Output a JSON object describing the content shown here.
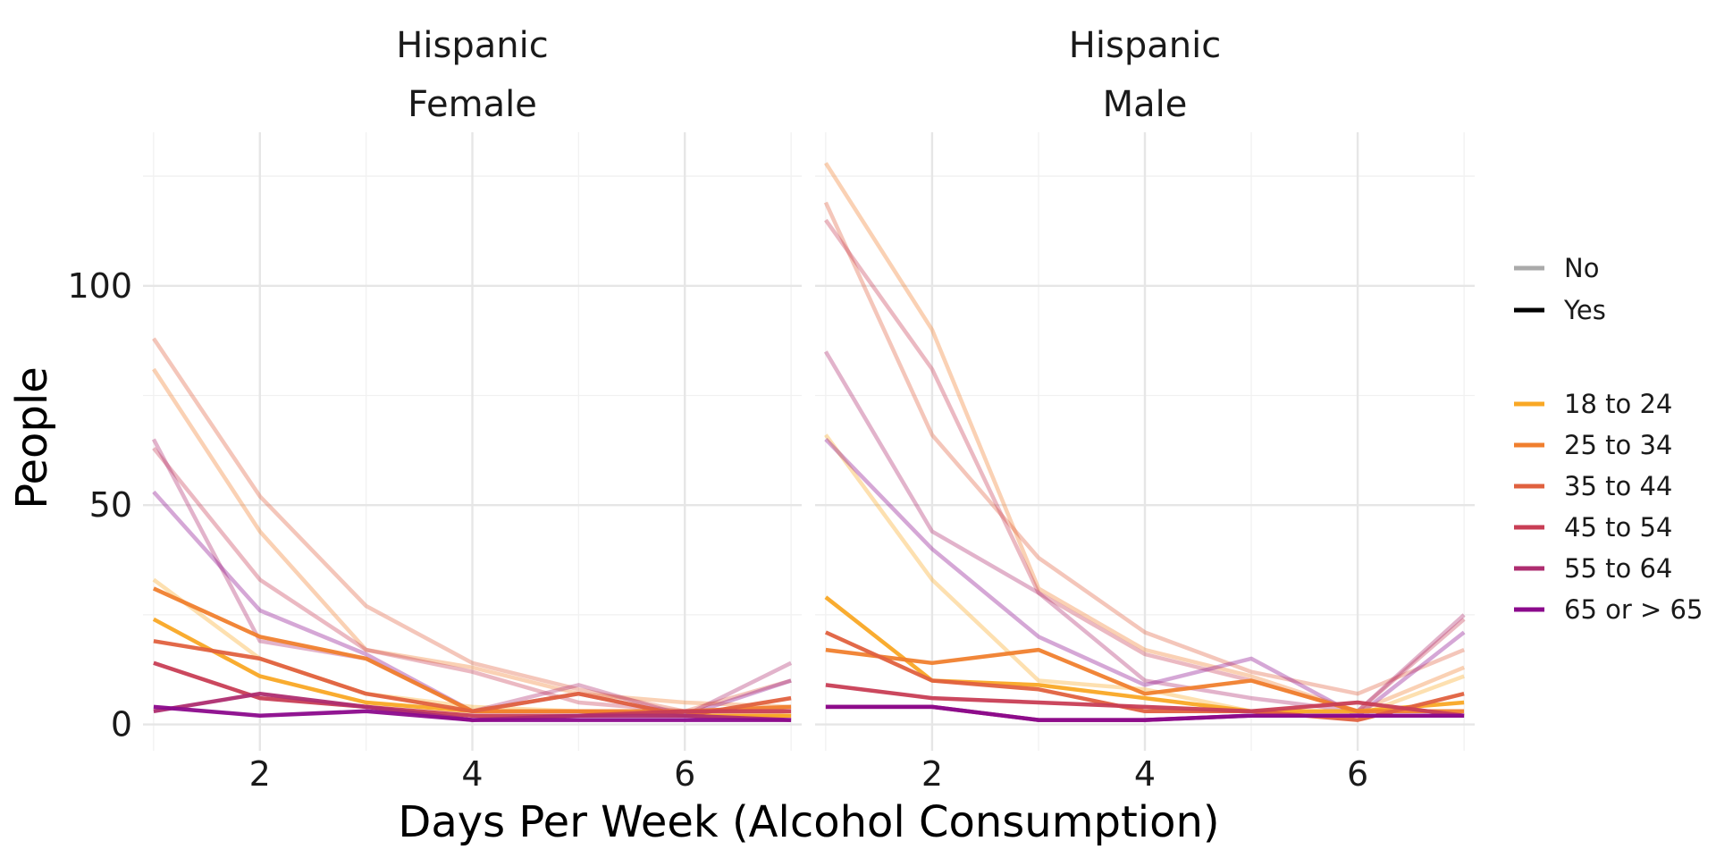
{
  "chart_data": {
    "type": "line",
    "xlabel": "Days Per Week (Alcohol Consumption)",
    "ylabel": "People",
    "x": [
      1,
      2,
      3,
      4,
      5,
      6,
      7
    ],
    "xlim": [
      0.9,
      7.1
    ],
    "ylim": [
      -6,
      135
    ],
    "xticks": [
      2,
      4,
      6
    ],
    "yticks": [
      0,
      50,
      100
    ],
    "grid": true,
    "legend_position": "right",
    "linetype_legend": {
      "entries": [
        {
          "label": "No",
          "color": "#aaaaaa"
        },
        {
          "label": "Yes",
          "color": "#000000"
        }
      ]
    },
    "color_legend": {
      "entries": [
        {
          "label": "18 to 24",
          "color": "#F9A825"
        },
        {
          "label": "25 to 34",
          "color": "#F07F2E"
        },
        {
          "label": "35 to 44",
          "color": "#E0613F"
        },
        {
          "label": "45 to 54",
          "color": "#C83E55"
        },
        {
          "label": "55 to 64",
          "color": "#AE2D70"
        },
        {
          "label": "65 or > 65",
          "color": "#8B0A8C"
        }
      ]
    },
    "facets": [
      {
        "strip": [
          "Hispanic",
          "Female"
        ],
        "series": [
          {
            "age": "18 to 24",
            "group": "No",
            "values": [
              33,
              15,
              7,
              4,
              3,
              2,
              2
            ]
          },
          {
            "age": "25 to 34",
            "group": "No",
            "values": [
              81,
              44,
              17,
              13,
              7,
              5,
              4
            ]
          },
          {
            "age": "35 to 44",
            "group": "No",
            "values": [
              88,
              52,
              27,
              14,
              8,
              3,
              10
            ]
          },
          {
            "age": "45 to 54",
            "group": "No",
            "values": [
              63,
              33,
              17,
              12,
              5,
              3,
              2
            ]
          },
          {
            "age": "55 to 64",
            "group": "No",
            "values": [
              65,
              19,
              15,
              3,
              9,
              2,
              14
            ]
          },
          {
            "age": "65 or > 65",
            "group": "No",
            "values": [
              53,
              26,
              16,
              3,
              7,
              2,
              10
            ]
          },
          {
            "age": "18 to 24",
            "group": "Yes",
            "values": [
              24,
              11,
              5,
              3,
              3,
              2,
              2
            ]
          },
          {
            "age": "25 to 34",
            "group": "Yes",
            "values": [
              31,
              20,
              15,
              3,
              3,
              3,
              4
            ]
          },
          {
            "age": "35 to 44",
            "group": "Yes",
            "values": [
              19,
              15,
              7,
              3,
              7,
              2,
              6
            ]
          },
          {
            "age": "45 to 54",
            "group": "Yes",
            "values": [
              14,
              6,
              4,
              2,
              2,
              3,
              3
            ]
          },
          {
            "age": "55 to 64",
            "group": "Yes",
            "values": [
              3,
              7,
              4,
              1,
              2,
              2,
              1
            ]
          },
          {
            "age": "65 or > 65",
            "group": "Yes",
            "values": [
              4,
              2,
              3,
              1,
              1,
              1,
              1
            ]
          }
        ]
      },
      {
        "strip": [
          "Hispanic",
          "Male"
        ],
        "series": [
          {
            "age": "18 to 24",
            "group": "No",
            "values": [
              66,
              33,
              10,
              8,
              3,
              2,
              11
            ]
          },
          {
            "age": "25 to 34",
            "group": "No",
            "values": [
              128,
              90,
              31,
              17,
              11,
              3,
              13
            ]
          },
          {
            "age": "35 to 44",
            "group": "No",
            "values": [
              119,
              66,
              38,
              21,
              12,
              7,
              17
            ]
          },
          {
            "age": "45 to 54",
            "group": "No",
            "values": [
              115,
              81,
              30,
              16,
              10,
              3,
              24
            ]
          },
          {
            "age": "55 to 64",
            "group": "No",
            "values": [
              85,
              44,
              30,
              10,
              6,
              3,
              25
            ]
          },
          {
            "age": "65 or > 65",
            "group": "No",
            "values": [
              65,
              40,
              20,
              9,
              15,
              2,
              21
            ]
          },
          {
            "age": "18 to 24",
            "group": "Yes",
            "values": [
              29,
              10,
              9,
              6,
              3,
              3,
              5
            ]
          },
          {
            "age": "25 to 34",
            "group": "Yes",
            "values": [
              17,
              14,
              17,
              7,
              10,
              3,
              3
            ]
          },
          {
            "age": "35 to 44",
            "group": "Yes",
            "values": [
              21,
              10,
              8,
              3,
              3,
              1,
              7
            ]
          },
          {
            "age": "45 to 54",
            "group": "Yes",
            "values": [
              9,
              6,
              5,
              4,
              3,
              5,
              2
            ]
          },
          {
            "age": "55 to 64",
            "group": "Yes",
            "values": [
              4,
              4,
              1,
              1,
              2,
              2,
              2
            ]
          },
          {
            "age": "65 or > 65",
            "group": "Yes",
            "values": [
              4,
              4,
              1,
              1,
              2,
              2,
              2
            ]
          }
        ]
      }
    ]
  }
}
